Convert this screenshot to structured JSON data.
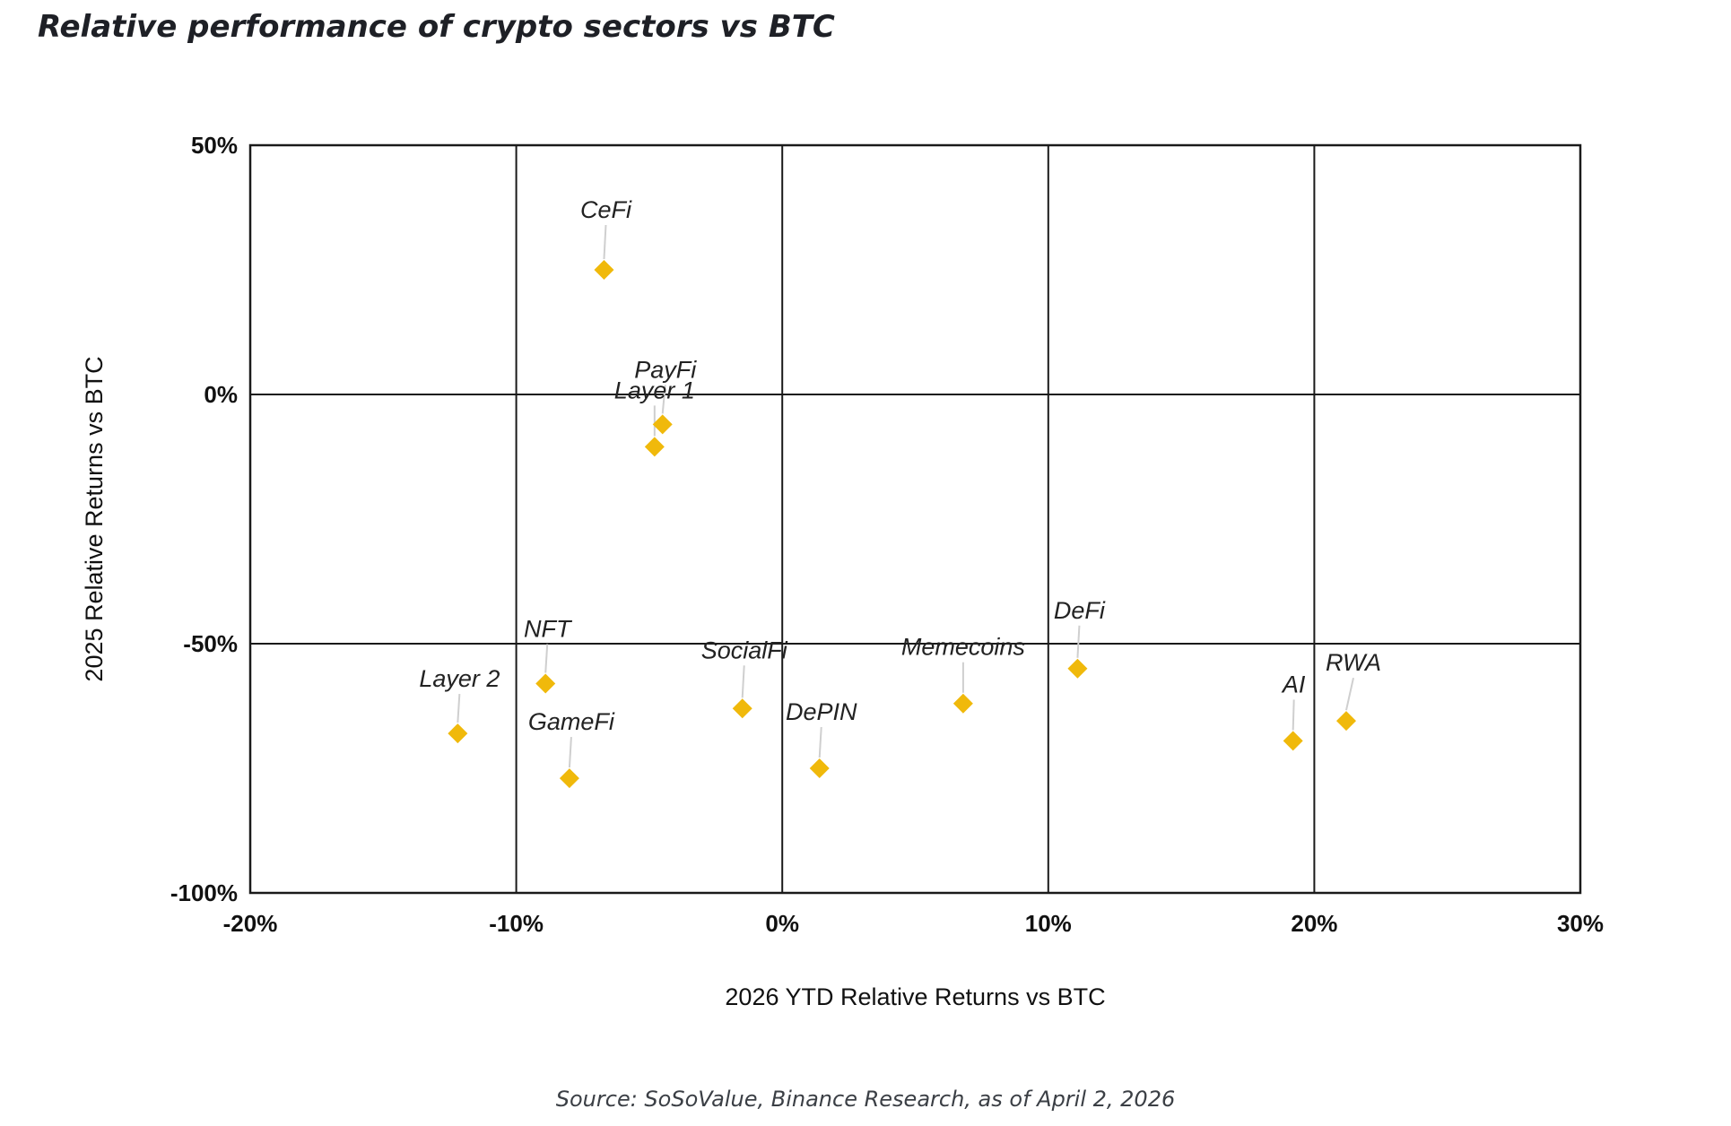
{
  "title": "Relative performance of crypto sectors vs BTC",
  "source": "Source: SoSoValue, Binance Research, as of April 2, 2026",
  "colors": {
    "marker": "#F0B90B",
    "grid": "#1a1a1a",
    "leader": "#cfcfcf"
  },
  "chart_data": {
    "type": "scatter",
    "title": "Relative performance of crypto sectors vs BTC",
    "xlabel": "2026 YTD Relative Returns vs BTC",
    "ylabel": "2025 Relative Returns vs BTC",
    "xlim": [
      -20,
      30
    ],
    "ylim": [
      -100,
      50
    ],
    "x_ticks": [
      -20,
      -10,
      0,
      10,
      20,
      30
    ],
    "y_ticks": [
      -100,
      -50,
      0,
      50
    ],
    "x_tick_labels": [
      "-20%",
      "-10%",
      "0%",
      "10%",
      "20%",
      "30%"
    ],
    "y_tick_labels": [
      "-100%",
      "-50%",
      "0%",
      "50%"
    ],
    "grid": true,
    "points": [
      {
        "label": "CeFi",
        "x": -6.7,
        "y": 25
      },
      {
        "label": "PayFi",
        "x": -4.5,
        "y": -6
      },
      {
        "label": "Layer 1",
        "x": -4.8,
        "y": -10.5
      },
      {
        "label": "NFT",
        "x": -8.9,
        "y": -58
      },
      {
        "label": "Layer 2",
        "x": -12.2,
        "y": -68
      },
      {
        "label": "GameFi",
        "x": -8.0,
        "y": -77
      },
      {
        "label": "SocialFi",
        "x": -1.5,
        "y": -63
      },
      {
        "label": "DePIN",
        "x": 1.4,
        "y": -75
      },
      {
        "label": "Memecoins",
        "x": 6.8,
        "y": -62
      },
      {
        "label": "DeFi",
        "x": 11.1,
        "y": -55
      },
      {
        "label": "AI",
        "x": 19.2,
        "y": -69.5
      },
      {
        "label": "RWA",
        "x": 21.2,
        "y": -65.5
      }
    ]
  }
}
